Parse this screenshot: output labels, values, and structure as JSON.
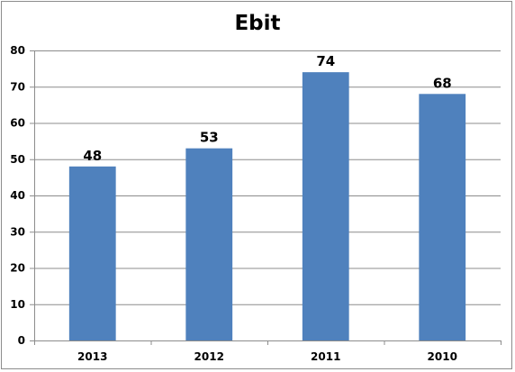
{
  "chart_data": {
    "type": "bar",
    "title": "Ebit",
    "xlabel": "",
    "ylabel": "",
    "categories": [
      "2013",
      "2012",
      "2011",
      "2010"
    ],
    "values": [
      48,
      53,
      74,
      68
    ],
    "ylim": [
      0,
      80
    ],
    "yticks": [
      0,
      10,
      20,
      30,
      40,
      50,
      60,
      70,
      80
    ],
    "grid": true,
    "legend": "none",
    "bar_color": "#4f81bd",
    "grid_color": "#8c8c8c"
  }
}
